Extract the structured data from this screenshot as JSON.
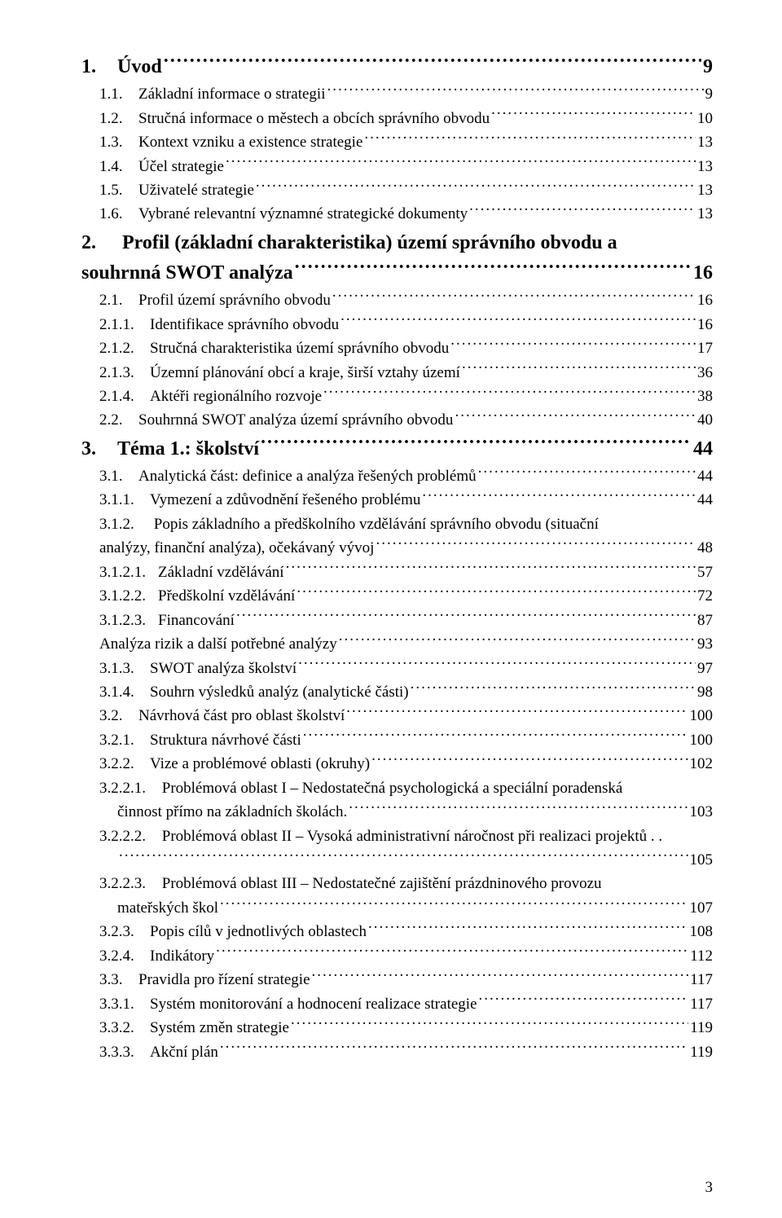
{
  "footer_page_number": "3",
  "text_color": "#000000",
  "background_color": "#ffffff",
  "font_family": "Times New Roman",
  "font_size_level1_pt": 18,
  "font_size_body_pt": 14,
  "entries": [
    {
      "level": 1,
      "num": "1.",
      "title": "Úvod",
      "page": "9"
    },
    {
      "level": 2,
      "num": "1.1.",
      "title": "Základní informace o strategii",
      "page": "9"
    },
    {
      "level": 2,
      "num": "1.2.",
      "title": "Stručná informace o městech a obcích správního obvodu",
      "page": "10"
    },
    {
      "level": 2,
      "num": "1.3.",
      "title": "Kontext vzniku a existence strategie",
      "page": "13"
    },
    {
      "level": 2,
      "num": "1.4.",
      "title": "Účel strategie",
      "page": "13"
    },
    {
      "level": 2,
      "num": "1.5.",
      "title": "Uživatelé strategie",
      "page": "13"
    },
    {
      "level": 2,
      "num": "1.6.",
      "title": "Vybrané relevantní významné strategické dokumenty",
      "page": "13"
    },
    {
      "level": 1,
      "num": "2.",
      "title_line1": "Profil (základní charakteristika) území správního obvodu a",
      "title_line2": "souhrnná SWOT analýza",
      "page": "16",
      "wrap": true,
      "hang": 0
    },
    {
      "level": 2,
      "num": "2.1.",
      "title": "Profil území správního obvodu",
      "page": "16"
    },
    {
      "level": 3,
      "num": "2.1.1.",
      "title": "Identifikace správního obvodu",
      "page": "16"
    },
    {
      "level": 3,
      "num": "2.1.2.",
      "title": "Stručná charakteristika území správního obvodu",
      "page": "17"
    },
    {
      "level": 3,
      "num": "2.1.3.",
      "title": "Územní plánování obcí a kraje, širší vztahy území",
      "page": "36"
    },
    {
      "level": 3,
      "num": "2.1.4.",
      "title": "Aktéři regionálního rozvoje",
      "page": "38"
    },
    {
      "level": 2,
      "num": "2.2.",
      "title": "Souhrnná SWOT analýza území správního obvodu",
      "page": "40"
    },
    {
      "level": 1,
      "num": "3.",
      "title": "Téma 1.: školství",
      "page": "44"
    },
    {
      "level": 2,
      "num": "3.1.",
      "title": "Analytická část: definice a analýza řešených problémů",
      "page": "44"
    },
    {
      "level": 3,
      "num": "3.1.1.",
      "title": "Vymezení a zdůvodnění řešeného problému",
      "page": "44"
    },
    {
      "level": 3,
      "num": "3.1.2.",
      "title_line1": "Popis základního a předškolního vzdělávání správního obvodu (situační",
      "title_line2": "analýzy, finanční analýza), očekávaný vývoj",
      "page": "48",
      "wrap": true,
      "hang": 1
    },
    {
      "level": 4,
      "num": "3.1.2.1.",
      "title": "Základní vzdělávání",
      "page": "57"
    },
    {
      "level": 4,
      "num": "3.1.2.2.",
      "title": "Předškolní vzdělávání",
      "page": "72"
    },
    {
      "level": 4,
      "num": "3.1.2.3.",
      "title": "Financování",
      "page": "87"
    },
    {
      "level": 3,
      "num": "",
      "title": "Analýza rizik a další potřebné analýzy",
      "page": "93",
      "noNum": true
    },
    {
      "level": 3,
      "num": "3.1.3.",
      "title": "SWOT analýza školství",
      "page": "97"
    },
    {
      "level": 3,
      "num": "3.1.4.",
      "title": "Souhrn výsledků analýz (analytické části)",
      "page": "98"
    },
    {
      "level": 2,
      "num": "3.2.",
      "title": "Návrhová část pro oblast školství",
      "page": "100"
    },
    {
      "level": 3,
      "num": "3.2.1.",
      "title": "Struktura návrhové části",
      "page": "100"
    },
    {
      "level": 3,
      "num": "3.2.2.",
      "title": "Vize a problémové oblasti (okruhy)",
      "page": "102"
    },
    {
      "level": 4,
      "num": "3.2.2.1.",
      "title_line1": "Problémová oblast I – Nedostatečná psychologická a speciální poradenská",
      "title_line2": "činnost přímo na základních školách.",
      "page": "103",
      "wrap": true,
      "hang": 1
    },
    {
      "level": 4,
      "num": "3.2.2.2.",
      "title_line1": "Problémová oblast II – Vysoká administrativní náročnost při realizaci projektů . .",
      "title_line2": "",
      "page": "105",
      "wrap": true,
      "hang": 1,
      "contLeaderOnly": true
    },
    {
      "level": 4,
      "num": "3.2.2.3.",
      "title_line1": "Problémová oblast III – Nedostatečné zajištění prázdninového provozu",
      "title_line2": "mateřských škol",
      "page": "107",
      "wrap": true,
      "hang": 1
    },
    {
      "level": 3,
      "num": "3.2.3.",
      "title": "Popis cílů v jednotlivých oblastech",
      "page": "108"
    },
    {
      "level": 3,
      "num": "3.2.4.",
      "title": "Indikátory",
      "page": "112"
    },
    {
      "level": 2,
      "num": "3.3.",
      "title": "Pravidla pro řízení strategie",
      "page": "117"
    },
    {
      "level": 3,
      "num": "3.3.1.",
      "title": "Systém monitorování a hodnocení realizace strategie",
      "page": "117"
    },
    {
      "level": 3,
      "num": "3.3.2.",
      "title": "Systém změn strategie",
      "page": "119"
    },
    {
      "level": 3,
      "num": "3.3.3.",
      "title": "Akční plán",
      "page": "119"
    }
  ]
}
